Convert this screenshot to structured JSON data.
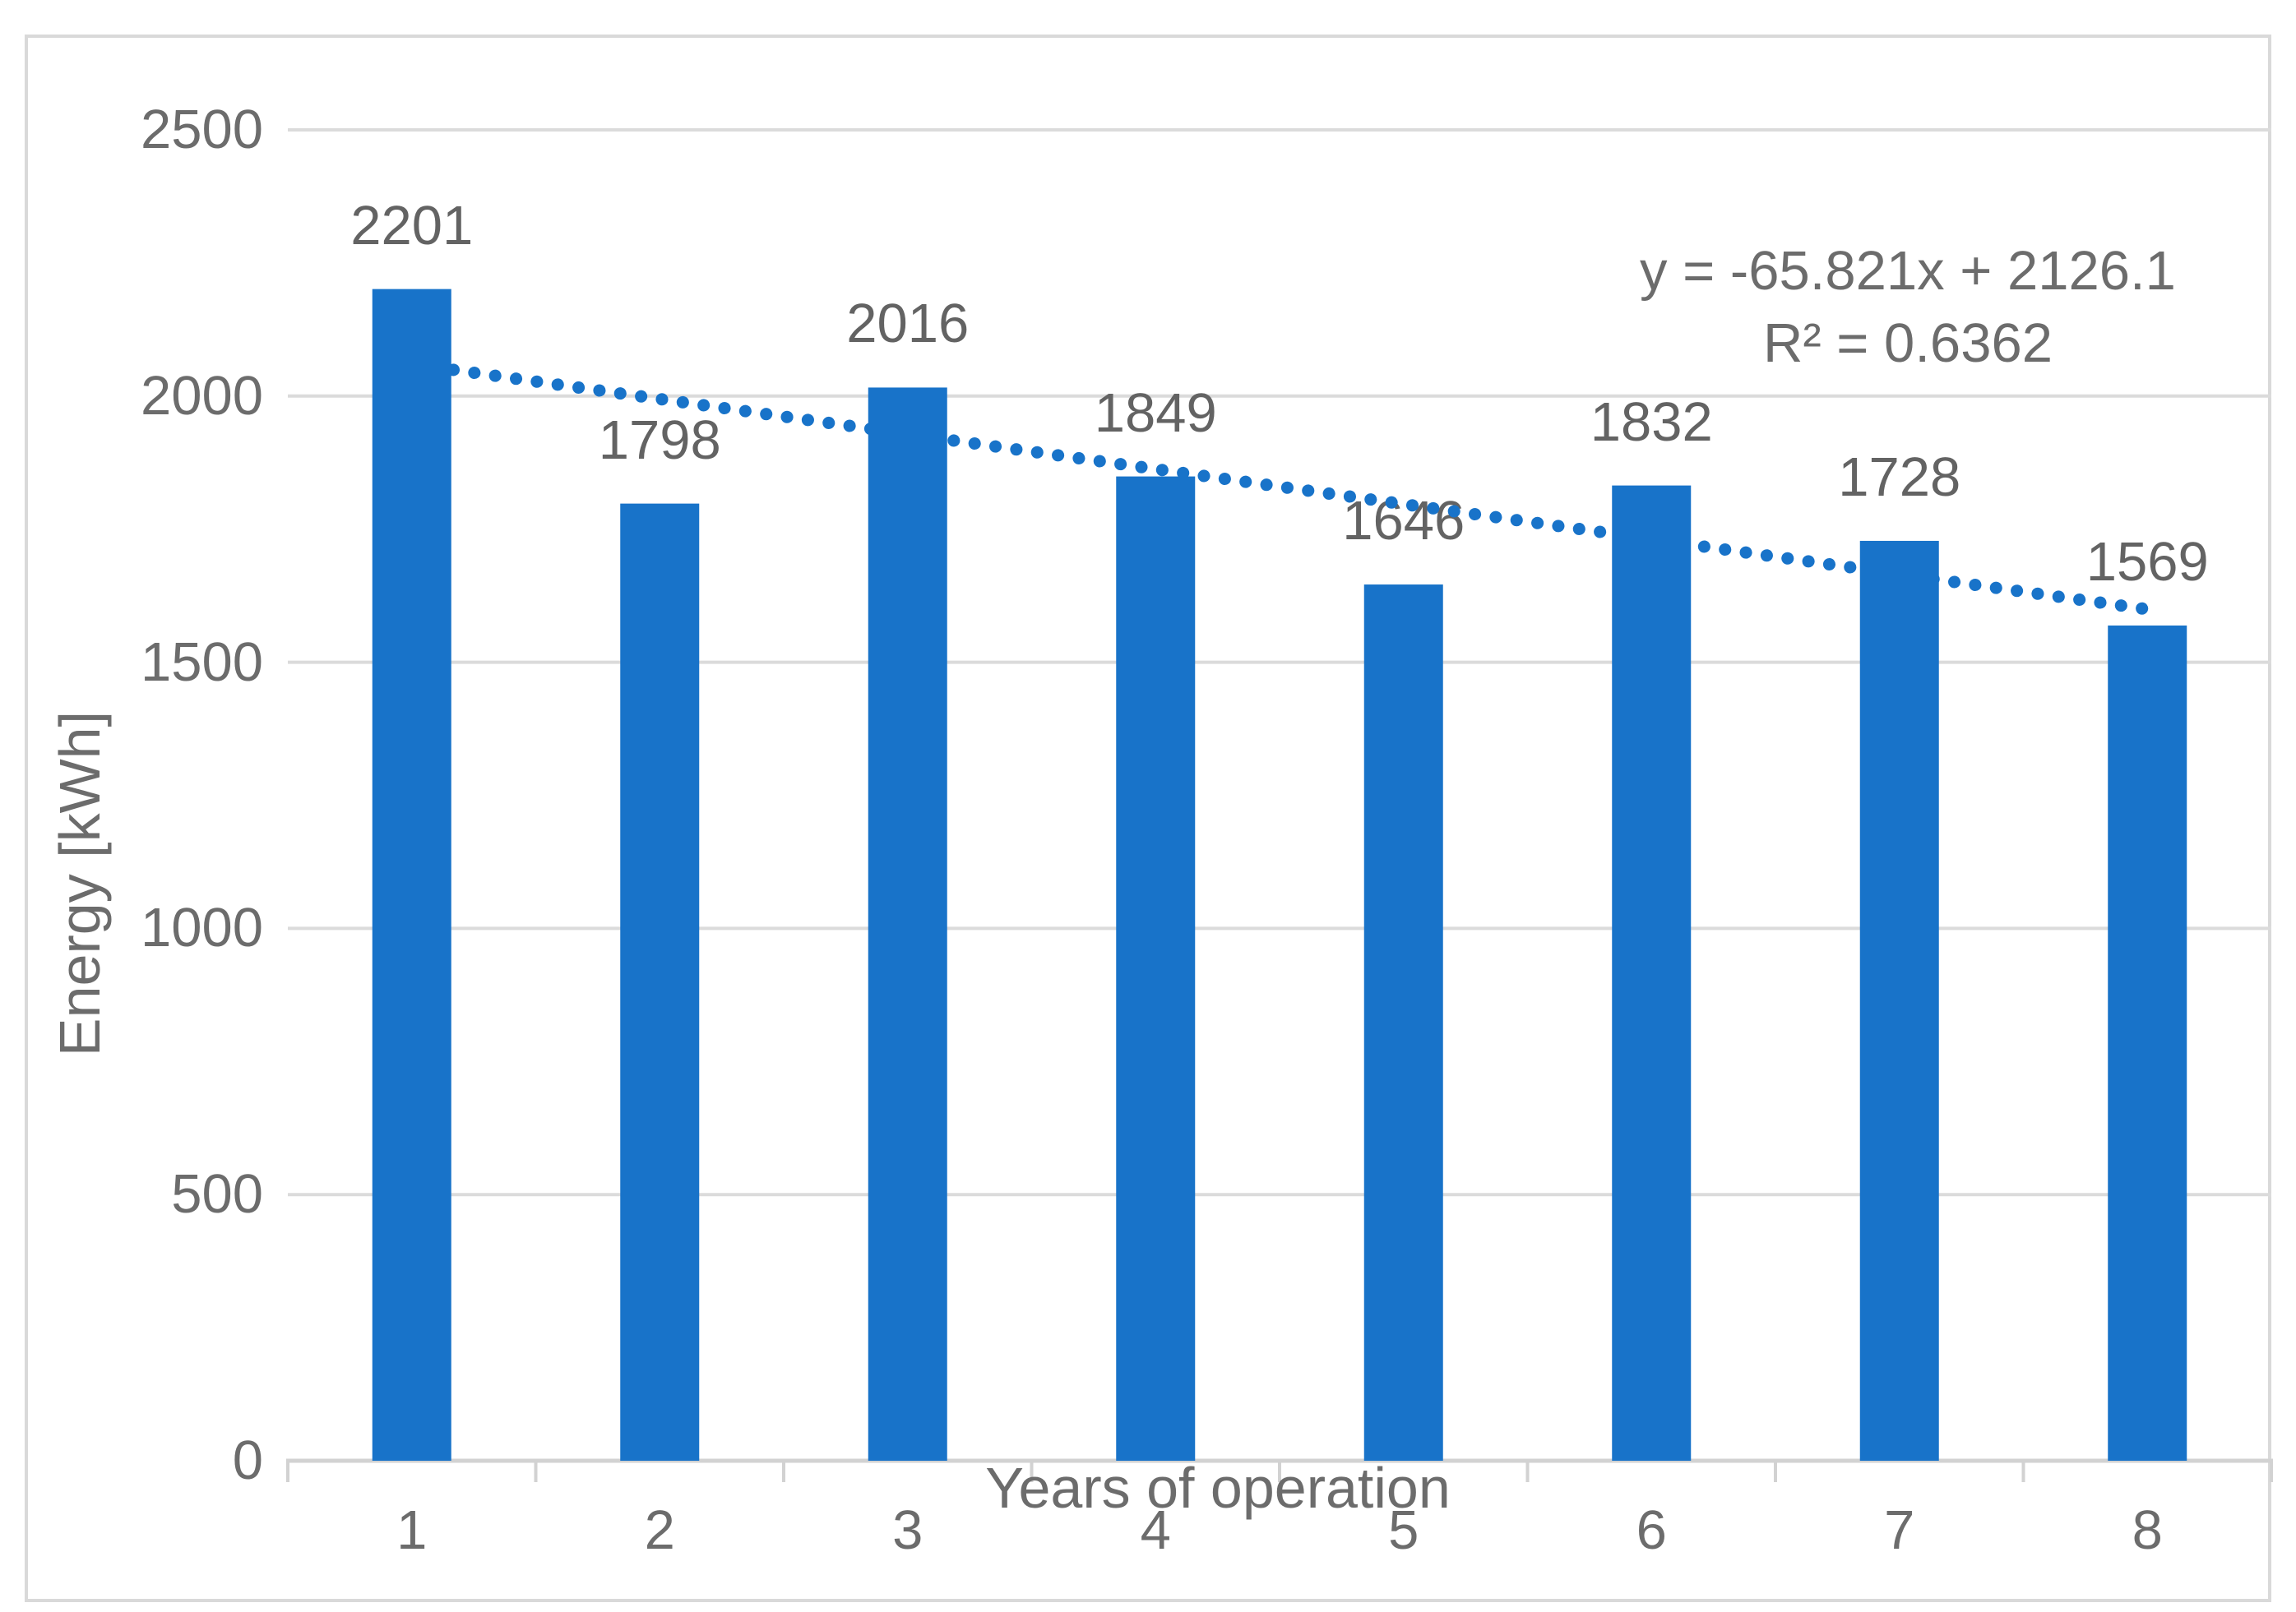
{
  "chart_data": {
    "type": "bar",
    "title": "",
    "categories": [
      "1",
      "2",
      "3",
      "4",
      "5",
      "6",
      "7",
      "8"
    ],
    "series": [
      {
        "name": "Energy",
        "values": [
          2201,
          1798,
          2016,
          1849,
          1646,
          1832,
          1728,
          1569
        ]
      }
    ],
    "data_labels_visible": true,
    "xlabel": "Years of operation",
    "ylabel": "Energy [kWh]",
    "ylim": [
      0,
      2500
    ],
    "yticks": [
      0,
      500,
      1000,
      1500,
      2000,
      2500
    ],
    "grid": true,
    "legend": false,
    "trendline": {
      "type": "linear",
      "slope": -65.821,
      "intercept": 2126.1,
      "x_range": [
        1,
        8
      ],
      "style": "dotted",
      "equation_label": "y = -65.821x + 2126.1",
      "r_squared_label": "R² = 0.6362"
    },
    "colors": {
      "bar": "#1873C9",
      "trendline": "#1873C9",
      "gridline": "#DBDBDB",
      "axis_line": "#D2D2D2",
      "tick_mark": "#D2D2D2",
      "text": "#6c6c6c",
      "chart_border": "#D9D9D9"
    }
  }
}
